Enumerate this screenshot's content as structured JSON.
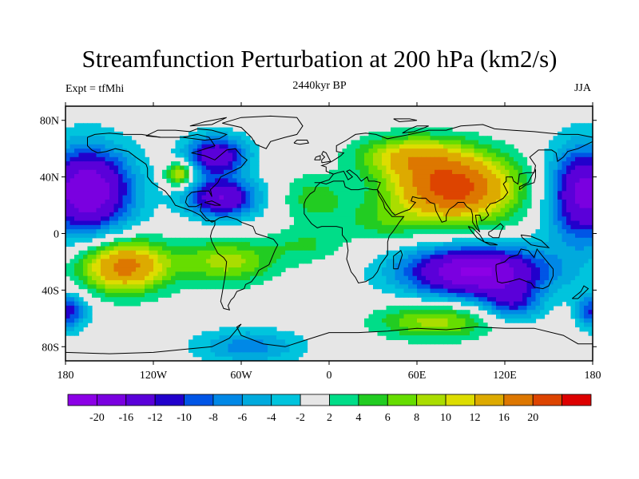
{
  "title": "Streamfunction Perturbation at 200 hPa (km2/s)",
  "left_note": "Expt = tfMhi",
  "center_note": "2440kyr BP",
  "right_note": "JJA",
  "map": {
    "projection": "cylindrical-equidistant",
    "lon_range": [
      -180,
      180
    ],
    "lat_range": [
      -90,
      90
    ],
    "lat_ticks": [
      {
        "value": 80,
        "label": "80N"
      },
      {
        "value": 40,
        "label": "40N"
      },
      {
        "value": 0,
        "label": "0"
      },
      {
        "value": -40,
        "label": "40S"
      },
      {
        "value": -80,
        "label": "80S"
      }
    ],
    "lon_ticks": [
      {
        "value": -180,
        "label": "180"
      },
      {
        "value": -120,
        "label": "120W"
      },
      {
        "value": -60,
        "label": "60W"
      },
      {
        "value": 0,
        "label": "0"
      },
      {
        "value": 60,
        "label": "60E"
      },
      {
        "value": 120,
        "label": "120E"
      },
      {
        "value": 180,
        "label": "180"
      }
    ],
    "background_color": "#e6e6e6"
  },
  "colorbar": {
    "colors": [
      "#8c00e6",
      "#7a00e0",
      "#5a00d9",
      "#2200cc",
      "#0055e6",
      "#0088e6",
      "#00aadd",
      "#00c4dd",
      "#e6e6e6",
      "#00dd88",
      "#22cc22",
      "#66dd00",
      "#aadd00",
      "#dddd00",
      "#ddaa00",
      "#dd7700",
      "#dd4400",
      "#dd0000"
    ],
    "labels": [
      "-20",
      "-16",
      "-12",
      "-10",
      "-8",
      "-6",
      "-4",
      "-2",
      "2",
      "4",
      "6",
      "8",
      "10",
      "12",
      "16",
      "20"
    ]
  },
  "field_centers": [
    {
      "lon": -165,
      "lat": 30,
      "value": -20,
      "sx": 22,
      "sy": 22
    },
    {
      "lon": 175,
      "lat": 28,
      "value": -18,
      "sx": 18,
      "sy": 24
    },
    {
      "lon": -77,
      "lat": 55,
      "value": -15,
      "sx": 15,
      "sy": 10
    },
    {
      "lon": -73,
      "lat": 25,
      "value": -16,
      "sx": 17,
      "sy": 10
    },
    {
      "lon": -102,
      "lat": 42,
      "value": 12,
      "sx": 7,
      "sy": 6
    },
    {
      "lon": 85,
      "lat": 32,
      "value": 22,
      "sx": 30,
      "sy": 17
    },
    {
      "lon": 55,
      "lat": 55,
      "value": 10,
      "sx": 25,
      "sy": 10
    },
    {
      "lon": -140,
      "lat": -23,
      "value": 18,
      "sx": 21,
      "sy": 13
    },
    {
      "lon": -70,
      "lat": -20,
      "value": 9,
      "sx": 23,
      "sy": 11
    },
    {
      "lon": 100,
      "lat": -27,
      "value": -21,
      "sx": 35,
      "sy": 13
    },
    {
      "lon": 125,
      "lat": -50,
      "value": -9,
      "sx": 14,
      "sy": 9
    },
    {
      "lon": 72,
      "lat": -62,
      "value": 9,
      "sx": 28,
      "sy": 9
    },
    {
      "lon": -55,
      "lat": -80,
      "value": -7,
      "sx": 26,
      "sy": 9
    },
    {
      "lon": -180,
      "lat": -55,
      "value": -12,
      "sx": 10,
      "sy": 9
    },
    {
      "lon": 180,
      "lat": -55,
      "value": -10,
      "sx": 8,
      "sy": 9
    },
    {
      "lon": -10,
      "lat": 25,
      "value": 5,
      "sx": 16,
      "sy": 12
    },
    {
      "lon": 35,
      "lat": 8,
      "value": 4,
      "sx": 20,
      "sy": 10
    },
    {
      "lon": -15,
      "lat": -8,
      "value": 4,
      "sx": 18,
      "sy": 9
    }
  ]
}
